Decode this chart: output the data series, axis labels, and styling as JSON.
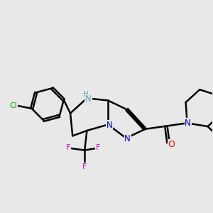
{
  "bg_color": "#e8e8e8",
  "bond_color": "#000000",
  "bond_width": 1.8,
  "atom_colors": {
    "C": "#000000",
    "N": "#0000cc",
    "O": "#ff0000",
    "F": "#cc00cc",
    "Cl": "#00aa00",
    "NH": "#55aaaa",
    "N2": "#0000cc"
  },
  "figsize": [
    3.0,
    3.0
  ],
  "dpi": 100
}
